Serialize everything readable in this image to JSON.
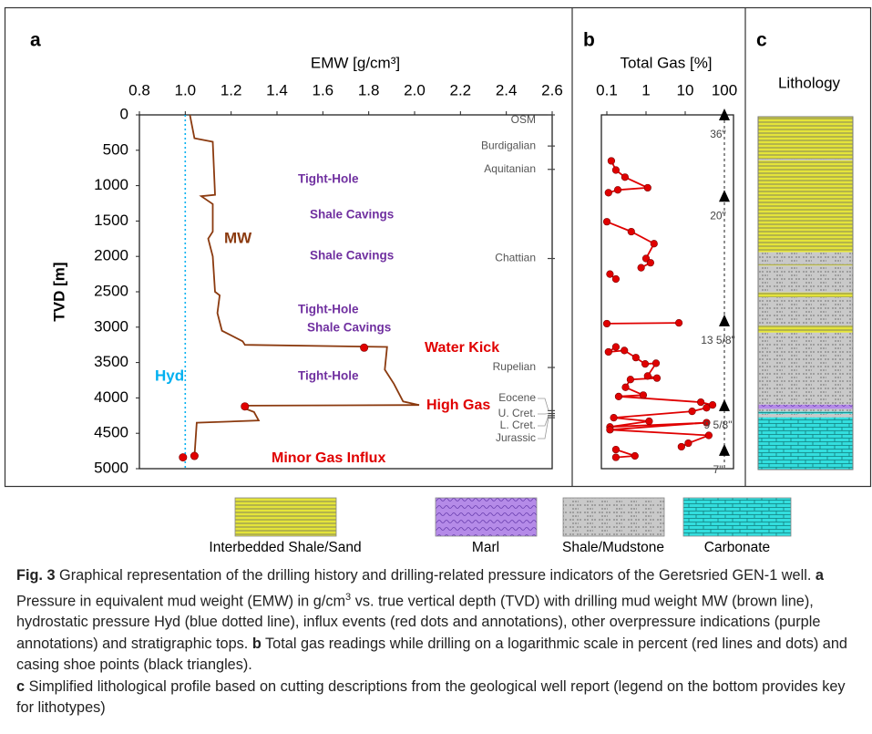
{
  "chart_data": [
    {
      "type": "line",
      "panel": "a",
      "xlabel": "EMW [g/cm³]",
      "ylabel": "TVD [m]",
      "xlim": [
        0.8,
        2.6
      ],
      "xticks": [
        0.8,
        {
          "value": 1,
          "label": "1.0"
        },
        1.2,
        1.4,
        1.6,
        1.8,
        {
          "value": 2,
          "label": "2.0"
        },
        2.2,
        2.4,
        2.6
      ],
      "ylim": [
        0,
        5000
      ],
      "y_inverted": true,
      "yticks": [
        0,
        500,
        1000,
        1500,
        2000,
        2500,
        3000,
        3500,
        4000,
        4500,
        5000
      ],
      "series": [
        {
          "name": "MW",
          "color": "#8b3a0f",
          "x": [
            1.02,
            1.04,
            1.12,
            1.13,
            1.07,
            1.12,
            1.12,
            1.1,
            1.12,
            1.13,
            1.15,
            1.14,
            1.16,
            1.25,
            1.26,
            1.88,
            1.87,
            1.91,
            1.95,
            2.02,
            1.27,
            1.26,
            1.3,
            1.32,
            1.05,
            1.04
          ],
          "y": [
            0,
            330,
            380,
            1130,
            1150,
            1260,
            1650,
            1750,
            2000,
            2500,
            2550,
            2800,
            3050,
            3200,
            3250,
            3280,
            3600,
            3800,
            4050,
            4100,
            4110,
            4150,
            4200,
            4320,
            4350,
            4830
          ]
        },
        {
          "name": "Hyd",
          "color": "#00b0f0",
          "style": "dotted",
          "x": [
            1,
            1
          ],
          "y": [
            0,
            5000
          ]
        }
      ],
      "influx": {
        "color": "#e00000",
        "x": [
          1.78,
          1.26,
          0.99,
          1.04
        ],
        "y": [
          3290,
          4120,
          4840,
          4820
        ],
        "labels": [
          "Water Kick",
          "High Gas",
          null,
          "Minor Gas Influx"
        ]
      },
      "annotations": {
        "color": "#7030a0",
        "texts": [
          "Tight-Hole",
          "Shale Cavings",
          "Shale Cavings",
          "Tight-Hole",
          "Shale Cavings",
          "Tight-Hole"
        ]
      },
      "strat_tops": {
        "names": [
          "OSM",
          "Burdigalian",
          "Aquitanian",
          "Chattian",
          "Rupelian",
          "Eocene",
          "U. Cret.",
          "L. Cret.",
          "Jurassic"
        ],
        "depths": [
          0,
          440,
          770,
          2030,
          3570,
          4180,
          4220,
          4250,
          4280
        ]
      }
    },
    {
      "type": "line",
      "panel": "b",
      "xlabel": "Total Gas [%]",
      "xscale": "log",
      "xlim": [
        0.1,
        100
      ],
      "xticks": [
        0.1,
        1,
        10,
        100
      ],
      "ylim": [
        0,
        5000
      ],
      "y_inverted": true,
      "series": [
        {
          "color": "#e00000",
          "marker": "circle",
          "x": [
            0.13,
            0.17,
            0.29,
            1.1,
            0.19,
            0.11,
            null,
            0.1,
            0.42,
            1.6,
            1.0,
            1.3,
            0.75,
            null,
            0.12,
            0.17,
            null,
            0.1,
            6.9,
            null,
            0.17,
            0.11,
            0.28,
            0.55,
            0.95,
            1.8,
            1.1,
            1.9,
            0.4,
            0.3,
            0.85,
            0.2,
            25,
            50,
            35,
            15,
            0.15,
            1.2,
            0.12,
            35,
            0.12,
            40,
            12,
            8,
            null,
            0.17,
            0.52,
            0.17
          ],
          "y": [
            650,
            780,
            880,
            1030,
            1060,
            1100,
            null,
            1510,
            1650,
            1820,
            2030,
            2090,
            2160,
            null,
            2250,
            2320,
            null,
            2950,
            2940,
            null,
            3280,
            3350,
            3330,
            3430,
            3520,
            3510,
            3690,
            3720,
            3740,
            3850,
            3960,
            3980,
            4060,
            4100,
            4140,
            4190,
            4280,
            4330,
            4410,
            4350,
            4450,
            4530,
            4640,
            4690,
            null,
            4730,
            4820,
            4840
          ]
        }
      ],
      "casing": {
        "color": "#000000",
        "x": [
          100,
          100,
          100,
          100,
          100
        ],
        "y": [
          0,
          1150,
          2910,
          4110,
          4740
        ],
        "labels": [
          "36\"",
          "20\"",
          "13 5/8\"",
          "9 5/8\"",
          "7\""
        ]
      }
    },
    {
      "type": "lithology",
      "panel": "c",
      "title": "Lithology",
      "ylim": [
        0,
        5000
      ],
      "y_inverted": true,
      "lithotypes": [
        {
          "name": "Interbedded Shale/Sand",
          "color": "#e4e43a"
        },
        {
          "name": "Marl",
          "color": "#b58be8"
        },
        {
          "name": "Shale/Mudstone",
          "color": "#c9c9c9"
        },
        {
          "name": "Carbonate",
          "color": "#33dede"
        }
      ],
      "tops": [
        0,
        600,
        620,
        1920,
        2090,
        2110,
        2490,
        2560,
        2960,
        3060,
        4080,
        4140,
        4180,
        4210,
        4260
      ],
      "bases": [
        600,
        620,
        1920,
        2090,
        2110,
        2490,
        2560,
        2960,
        3060,
        4080,
        4140,
        4180,
        4210,
        4260,
        5000
      ],
      "lithology": [
        0,
        2,
        0,
        2,
        0,
        2,
        0,
        2,
        0,
        2,
        1,
        2,
        3,
        2,
        3
      ]
    }
  ],
  "caption": [
    "Fig. 3",
    "  Graphical representation of the drilling history and drilling-related pressure indicators of the Geretsried GEN-1 well. ",
    "a",
    " Pressure in equivalent mud weight (EMW) in g/cm",
    "3",
    " vs. true vertical depth (TVD) with drilling mud weight MW (brown line), hydrostatic pressure Hyd (blue dotted line), influx events (red dots and annotations), other overpressure indications (purple annotations) and stratigraphic tops. ",
    "b",
    " Total gas readings while drilling on a logarithmic scale in percent (red lines and dots) and casing shoe points (black triangles). ",
    "c",
    " Simplified lithological profile based on cutting descriptions from the geological well report (legend on the bottom provides key for lithotypes)"
  ]
}
